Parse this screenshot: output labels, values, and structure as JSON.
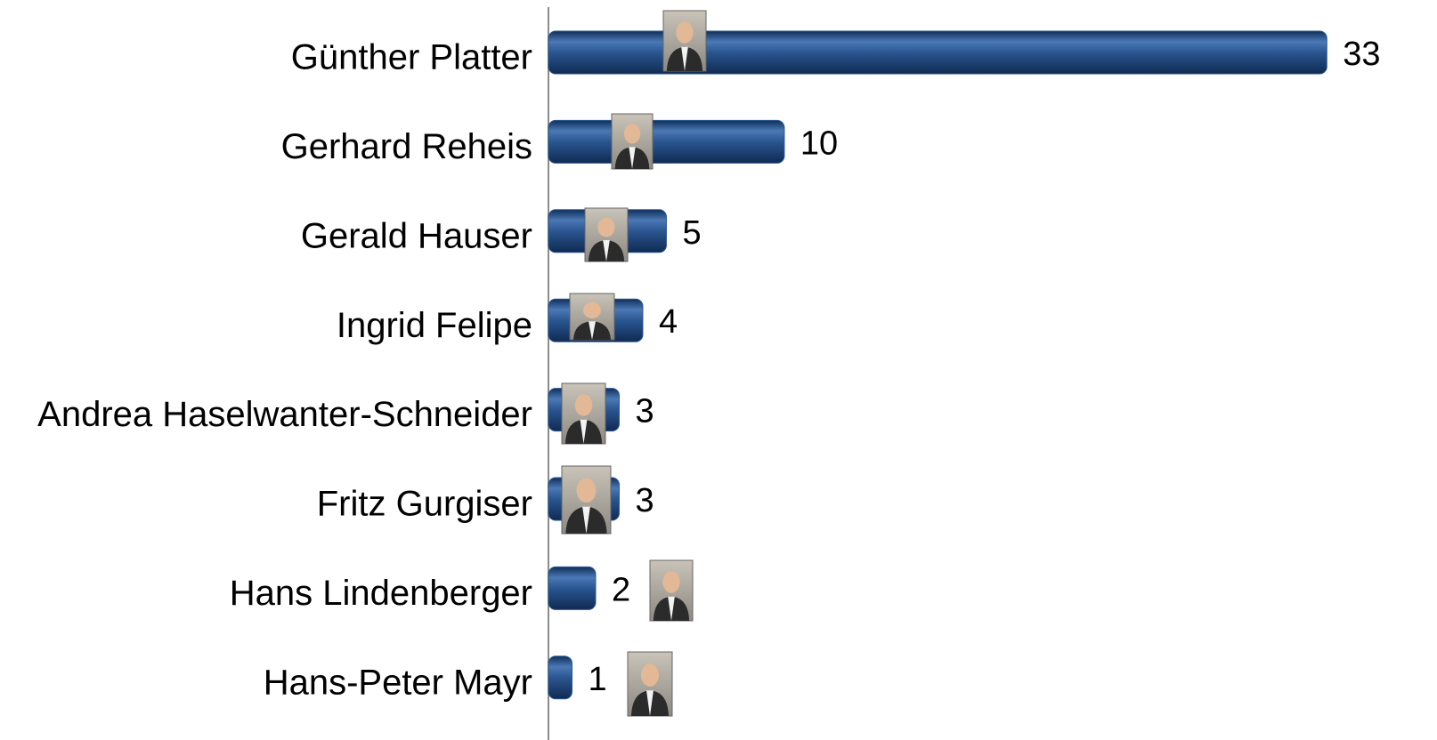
{
  "chart_data": {
    "type": "bar",
    "orientation": "horizontal",
    "categories": [
      "Günther Platter",
      "Gerhard Reheis",
      "Gerald Hauser",
      "Ingrid Felipe",
      "Andrea Haselwanter-Schneider",
      "Fritz Gurgiser",
      "Hans Lindenberger",
      "Hans-Peter Mayr"
    ],
    "values": [
      33,
      10,
      5,
      4,
      3,
      3,
      2,
      1
    ],
    "color": "#2a5691",
    "xlim": [
      0,
      34.5
    ]
  }
}
